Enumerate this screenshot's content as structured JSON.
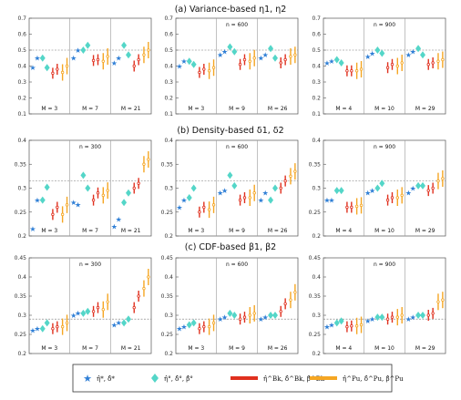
{
  "colors": {
    "star": "#2f7fd6",
    "diamond": "#54d6c8",
    "red": "#e0301e",
    "orange": "#f5a623",
    "refline": "#777777",
    "axis": "#555555"
  },
  "chart_data": [
    {
      "type": "scatter",
      "row_title": "(a) Variance-based η1, η2",
      "n_label": "",
      "ylim": [
        0.1,
        0.7
      ],
      "yticks": [
        0.1,
        0.2,
        0.3,
        0.4,
        0.5,
        0.6,
        0.7
      ],
      "ref": 0.5,
      "groups": [
        {
          "label": "M = 3",
          "star": [
            0.39,
            0.45
          ],
          "diamond": [
            0.45,
            0.39
          ],
          "red": [
            0.355,
            0.38
          ],
          "orange": [
            0.36,
            0.4
          ]
        },
        {
          "label": "M = 7",
          "star": [
            0.45,
            0.5
          ],
          "diamond": [
            0.5,
            0.53
          ],
          "red": [
            0.435,
            0.44
          ],
          "orange": [
            0.43,
            0.46
          ]
        },
        {
          "label": "M = 21",
          "star": [
            0.42,
            0.45
          ],
          "diamond": [
            0.53,
            0.47
          ],
          "red": [
            0.4,
            0.44
          ],
          "orange": [
            0.47,
            0.5
          ]
        }
      ]
    },
    {
      "type": "scatter",
      "row_title": "",
      "n_label": "n = 600",
      "ylim": [
        0.1,
        0.7
      ],
      "yticks": [
        0.1,
        0.2,
        0.3,
        0.4,
        0.5,
        0.6,
        0.7
      ],
      "ref": 0.5,
      "groups": [
        {
          "label": "M = 3",
          "star": [
            0.4,
            0.43
          ],
          "diamond": [
            0.43,
            0.41
          ],
          "red": [
            0.36,
            0.38
          ],
          "orange": [
            0.37,
            0.39
          ]
        },
        {
          "label": "M = 9",
          "star": [
            0.47,
            0.49
          ],
          "diamond": [
            0.52,
            0.49
          ],
          "red": [
            0.41,
            0.44
          ],
          "orange": [
            0.43,
            0.45
          ]
        },
        {
          "label": "M = 26",
          "star": [
            0.45,
            0.47
          ],
          "diamond": [
            0.51,
            0.45
          ],
          "red": [
            0.42,
            0.44
          ],
          "orange": [
            0.46,
            0.47
          ]
        }
      ]
    },
    {
      "type": "scatter",
      "row_title": "",
      "n_label": "n = 900",
      "ylim": [
        0.1,
        0.7
      ],
      "yticks": [
        0.1,
        0.2,
        0.3,
        0.4,
        0.5,
        0.6,
        0.7
      ],
      "ref": 0.5,
      "groups": [
        {
          "label": "M = 4",
          "star": [
            0.42,
            0.43
          ],
          "diamond": [
            0.44,
            0.42
          ],
          "red": [
            0.37,
            0.37
          ],
          "orange": [
            0.37,
            0.38
          ]
        },
        {
          "label": "M = 10",
          "star": [
            0.46,
            0.48
          ],
          "diamond": [
            0.5,
            0.48
          ],
          "red": [
            0.39,
            0.41
          ],
          "orange": [
            0.4,
            0.42
          ]
        },
        {
          "label": "M = 29",
          "star": [
            0.47,
            0.49
          ],
          "diamond": [
            0.51,
            0.47
          ],
          "red": [
            0.41,
            0.42
          ],
          "orange": [
            0.43,
            0.44
          ]
        }
      ]
    },
    {
      "type": "scatter",
      "row_title": "(b) Density-based δ1, δ2",
      "n_label": "n = 300",
      "ylim": [
        0.2,
        0.4
      ],
      "yticks": [
        0.2,
        0.25,
        0.3,
        0.35,
        0.4
      ],
      "ref": 0.315,
      "groups": [
        {
          "label": "M = 3",
          "star": [
            0.215,
            0.275
          ],
          "diamond": [
            0.275,
            0.302
          ],
          "red": [
            0.245,
            0.26
          ],
          "orange": [
            0.245,
            0.265
          ]
        },
        {
          "label": "M = 7",
          "star": [
            0.27,
            0.265
          ],
          "diamond": [
            0.327,
            0.3
          ],
          "red": [
            0.275,
            0.29
          ],
          "orange": [
            0.285,
            0.295
          ]
        },
        {
          "label": "M = 21",
          "star": [
            0.22,
            0.235
          ],
          "diamond": [
            0.27,
            0.29
          ],
          "red": [
            0.3,
            0.31
          ],
          "orange": [
            0.35,
            0.36
          ]
        }
      ]
    },
    {
      "type": "scatter",
      "row_title": "",
      "n_label": "n = 600",
      "ylim": [
        0.2,
        0.4
      ],
      "yticks": [
        0.2,
        0.25,
        0.3,
        0.35,
        0.4
      ],
      "ref": 0.315,
      "groups": [
        {
          "label": "M = 3",
          "star": [
            0.26,
            0.275
          ],
          "diamond": [
            0.28,
            0.3
          ],
          "red": [
            0.25,
            0.26
          ],
          "orange": [
            0.255,
            0.265
          ]
        },
        {
          "label": "M = 9",
          "star": [
            0.29,
            0.295
          ],
          "diamond": [
            0.327,
            0.305
          ],
          "red": [
            0.275,
            0.28
          ],
          "orange": [
            0.28,
            0.29
          ]
        },
        {
          "label": "M = 26",
          "star": [
            0.275,
            0.29
          ],
          "diamond": [
            0.275,
            0.3
          ],
          "red": [
            0.3,
            0.315
          ],
          "orange": [
            0.325,
            0.335
          ]
        }
      ]
    },
    {
      "type": "scatter",
      "row_title": "",
      "n_label": "n = 900",
      "ylim": [
        0.2,
        0.4
      ],
      "yticks": [
        0.2,
        0.25,
        0.3,
        0.35,
        0.4
      ],
      "ref": 0.315,
      "groups": [
        {
          "label": "M = 4",
          "star": [
            0.275,
            0.275
          ],
          "diamond": [
            0.295,
            0.295
          ],
          "red": [
            0.26,
            0.26
          ],
          "orange": [
            0.262,
            0.264
          ]
        },
        {
          "label": "M = 10",
          "star": [
            0.29,
            0.295
          ],
          "diamond": [
            0.3,
            0.31
          ],
          "red": [
            0.275,
            0.28
          ],
          "orange": [
            0.28,
            0.285
          ]
        },
        {
          "label": "M = 29",
          "star": [
            0.29,
            0.3
          ],
          "diamond": [
            0.305,
            0.305
          ],
          "red": [
            0.295,
            0.3
          ],
          "orange": [
            0.315,
            0.32
          ]
        }
      ]
    },
    {
      "type": "scatter",
      "row_title": "(c) CDF-based β1, β2",
      "n_label": "n = 300",
      "ylim": [
        0.2,
        0.45
      ],
      "yticks": [
        0.2,
        0.25,
        0.3,
        0.35,
        0.4,
        0.45
      ],
      "ref": 0.29,
      "groups": [
        {
          "label": "M = 3",
          "star": [
            0.26,
            0.265
          ],
          "diamond": [
            0.265,
            0.28
          ],
          "red": [
            0.265,
            0.27
          ],
          "orange": [
            0.27,
            0.28
          ]
        },
        {
          "label": "M = 7",
          "star": [
            0.3,
            0.305
          ],
          "diamond": [
            0.305,
            0.31
          ],
          "red": [
            0.31,
            0.32
          ],
          "orange": [
            0.315,
            0.335
          ]
        },
        {
          "label": "M = 21",
          "star": [
            0.275,
            0.28
          ],
          "diamond": [
            0.28,
            0.29
          ],
          "red": [
            0.32,
            0.35
          ],
          "orange": [
            0.37,
            0.4
          ]
        }
      ]
    },
    {
      "type": "scatter",
      "row_title": "",
      "n_label": "n = 600",
      "ylim": [
        0.2,
        0.45
      ],
      "yticks": [
        0.2,
        0.25,
        0.3,
        0.35,
        0.4,
        0.45
      ],
      "ref": 0.29,
      "groups": [
        {
          "label": "M = 3",
          "star": [
            0.265,
            0.27
          ],
          "diamond": [
            0.275,
            0.28
          ],
          "red": [
            0.265,
            0.27
          ],
          "orange": [
            0.27,
            0.28
          ]
        },
        {
          "label": "M = 9",
          "star": [
            0.29,
            0.295
          ],
          "diamond": [
            0.305,
            0.3
          ],
          "red": [
            0.29,
            0.295
          ],
          "orange": [
            0.3,
            0.305
          ]
        },
        {
          "label": "M = 26",
          "star": [
            0.29,
            0.295
          ],
          "diamond": [
            0.3,
            0.3
          ],
          "red": [
            0.31,
            0.33
          ],
          "orange": [
            0.34,
            0.36
          ]
        }
      ]
    },
    {
      "type": "scatter",
      "row_title": "",
      "n_label": "n = 900",
      "ylim": [
        0.2,
        0.45
      ],
      "yticks": [
        0.2,
        0.25,
        0.3,
        0.35,
        0.4,
        0.45
      ],
      "ref": 0.29,
      "groups": [
        {
          "label": "M = 4",
          "star": [
            0.27,
            0.275
          ],
          "diamond": [
            0.28,
            0.285
          ],
          "red": [
            0.27,
            0.272
          ],
          "orange": [
            0.272,
            0.275
          ]
        },
        {
          "label": "M = 10",
          "star": [
            0.285,
            0.29
          ],
          "diamond": [
            0.295,
            0.295
          ],
          "red": [
            0.29,
            0.295
          ],
          "orange": [
            0.295,
            0.3
          ]
        },
        {
          "label": "M = 29",
          "star": [
            0.29,
            0.295
          ],
          "diamond": [
            0.3,
            0.3
          ],
          "red": [
            0.3,
            0.305
          ],
          "orange": [
            0.335,
            0.34
          ]
        }
      ]
    }
  ],
  "legend": {
    "star_label": "η̂*, δ̂*",
    "diamond_label": "η̂°, δ̂°, β̂°",
    "red_label": "η̂^Bk, δ̂^Bk, β̂^Bk",
    "orange_label": "η̂^Pu, δ̂^Pu, β̂^Pu"
  }
}
